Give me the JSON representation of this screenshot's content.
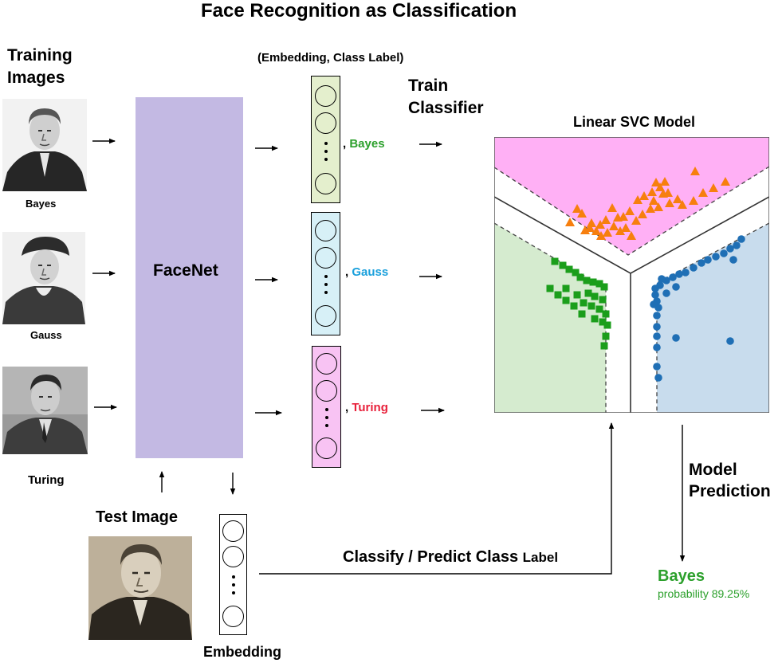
{
  "title": "Face Recognition as Classification",
  "training_images": {
    "heading_line1": "Training",
    "heading_line2": "Images",
    "people": [
      {
        "name": "Bayes"
      },
      {
        "name": "Gauss"
      },
      {
        "name": "Turing"
      }
    ]
  },
  "facenet_label": "FaceNet",
  "pair_header": "(Embedding, Class Label)",
  "embeddings": [
    {
      "label": "Bayes",
      "color": "#2ca02c",
      "fill": "#e4efcd"
    },
    {
      "label": "Gauss",
      "color": "#1aa0dc",
      "fill": "#d7f0f7"
    },
    {
      "label": "Turing",
      "color": "#e8203a",
      "fill": "#f8c3f3"
    }
  ],
  "comma": ",",
  "train_classifier_line1": "Train",
  "train_classifier_line2": "Classifier",
  "model_title": "Linear SVC Model",
  "test_image_label": "Test Image",
  "embedding_label": "Embedding",
  "classify_label_a": "Classify / Predict Class",
  "classify_label_b": "Label",
  "model_prediction_line1": "Model",
  "model_prediction_line2": "Prediction",
  "prediction": {
    "name": "Bayes",
    "probability_text": "probability 89.25%",
    "color": "#2ca02c"
  },
  "region_colors": {
    "turing": "#ffb0f5",
    "bayes": "#d5ebcf",
    "gauss": "#c8dced"
  },
  "marker_colors": {
    "triangle": "#f77f0e",
    "square": "#1b9e1b",
    "circle": "#1f6fb5"
  }
}
